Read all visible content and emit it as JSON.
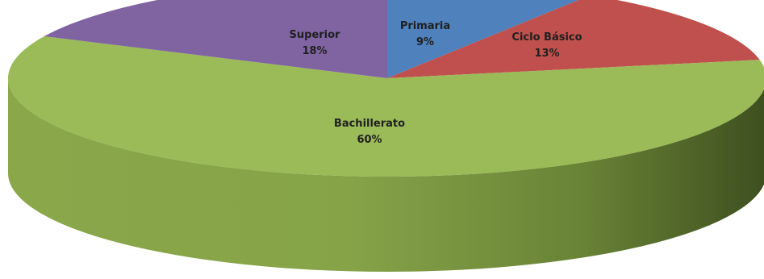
{
  "chart_data": {
    "type": "pie",
    "style": "3d",
    "slices": [
      {
        "label": "Primaria",
        "value": 9,
        "value_label": "9%",
        "color": "#4f81bd"
      },
      {
        "label": "Ciclo Básico",
        "value": 13,
        "value_label": "13%",
        "color": "#c0504d"
      },
      {
        "label": "Bachillerato",
        "value": 60,
        "value_label": "60%",
        "color": "#9bbb59"
      },
      {
        "label": "Superior",
        "value": 18,
        "value_label": "18%",
        "color": "#8064a2"
      }
    ]
  }
}
